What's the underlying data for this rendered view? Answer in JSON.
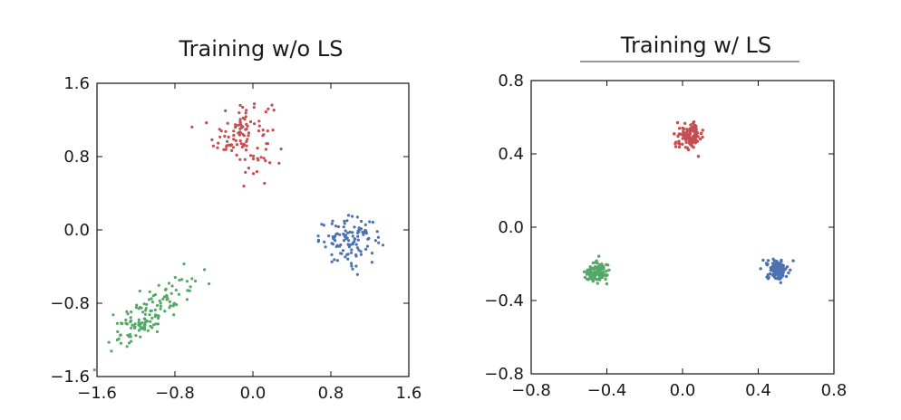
{
  "chart_data": [
    {
      "type": "scatter",
      "title": "Training w/o LS",
      "xlabel": "",
      "ylabel": "",
      "xlim": [
        -1.6,
        1.6
      ],
      "ylim": [
        -1.6,
        1.6
      ],
      "x_ticks": [
        "-1.6",
        "-0.8",
        "0.0",
        "0.8",
        "1.6"
      ],
      "y_ticks": [
        "-1.6",
        "-0.8",
        "0.0",
        "0.8",
        "1.6"
      ],
      "grid": false,
      "clusters": [
        {
          "color": "#c44e52",
          "center": [
            -0.1,
            1.05
          ],
          "approx_points": 110
        },
        {
          "color": "#4c72b0",
          "center": [
            1.0,
            -0.12
          ],
          "approx_points": 110
        },
        {
          "color": "#55a868",
          "center": [
            -1.05,
            -0.9
          ],
          "approx_points": 140
        }
      ]
    },
    {
      "type": "scatter",
      "title": "Training w/ LS",
      "xlabel": "",
      "ylabel": "",
      "xlim": [
        -0.8,
        0.8
      ],
      "ylim": [
        -0.8,
        0.8
      ],
      "x_ticks": [
        "-0.8",
        "-0.4",
        "0.0",
        "0.4",
        "0.8"
      ],
      "y_ticks": [
        "-0.8",
        "-0.4",
        "0.0",
        "0.4",
        "0.8"
      ],
      "grid": false,
      "clusters": [
        {
          "color": "#c44e52",
          "center": [
            0.04,
            0.5
          ],
          "approx_points": 120
        },
        {
          "color": "#4c72b0",
          "center": [
            0.5,
            -0.23
          ],
          "approx_points": 120
        },
        {
          "color": "#55a868",
          "center": [
            -0.46,
            -0.25
          ],
          "approx_points": 120
        }
      ]
    }
  ]
}
